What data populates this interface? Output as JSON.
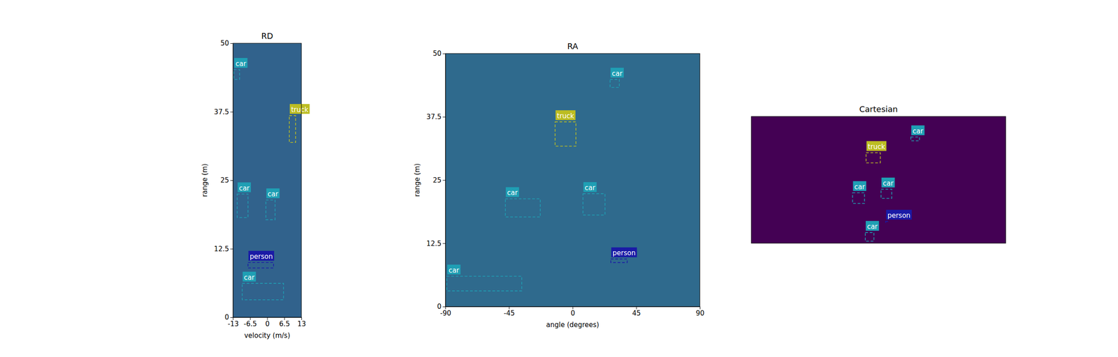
{
  "chart_data": [
    {
      "type": "detection",
      "title": "RD",
      "xlabel": "velocity (m/s)",
      "ylabel": "range (m)",
      "xlim": [
        -13,
        13
      ],
      "ylim": [
        0,
        50
      ],
      "xticks": [
        -13,
        -6.5,
        0,
        6.5,
        13
      ],
      "yticks": [
        0,
        12.5,
        25,
        37.5,
        50
      ],
      "boxes": [
        {
          "label": "car",
          "x": [
            -12.7,
            -10.5
          ],
          "y": [
            43.4,
            45.2
          ],
          "color": "#1f9fb4"
        },
        {
          "label": "truck",
          "x": [
            8.4,
            10.8
          ],
          "y": [
            31.9,
            36.8
          ],
          "color": "#bcbd22"
        },
        {
          "label": "car",
          "x": [
            -11.4,
            -7.3
          ],
          "y": [
            18.2,
            22.5
          ],
          "color": "#1f9fb4"
        },
        {
          "label": "car",
          "x": [
            -0.5,
            3.0
          ],
          "y": [
            17.8,
            21.4
          ],
          "color": "#1f9fb4"
        },
        {
          "label": "person",
          "x": [
            -7.3,
            2.4
          ],
          "y": [
            9.0,
            10.0
          ],
          "color": "#1a1aa6"
        },
        {
          "label": "car",
          "x": [
            -9.5,
            6.2
          ],
          "y": [
            3.2,
            6.2
          ],
          "color": "#1f9fb4"
        }
      ]
    },
    {
      "type": "detection",
      "title": "RA",
      "xlabel": "angle (degrees)",
      "ylabel": "range (m)",
      "xlim": [
        -90,
        90
      ],
      "ylim": [
        0,
        50
      ],
      "xticks": [
        -90,
        -45,
        0,
        45,
        90
      ],
      "yticks": [
        0,
        12.5,
        25,
        37.5,
        50
      ],
      "boxes": [
        {
          "label": "car",
          "x": [
            26.5,
            33.0
          ],
          "y": [
            43.3,
            44.9
          ],
          "color": "#1f9fb4"
        },
        {
          "label": "truck",
          "x": [
            -12.4,
            2.3
          ],
          "y": [
            31.7,
            36.5
          ],
          "color": "#bcbd22"
        },
        {
          "label": "car",
          "x": [
            -47.6,
            -22.9
          ],
          "y": [
            17.7,
            21.3
          ],
          "color": "#1f9fb4"
        },
        {
          "label": "car",
          "x": [
            7.3,
            22.9
          ],
          "y": [
            18.1,
            22.3
          ],
          "color": "#1f9fb4"
        },
        {
          "label": "person",
          "x": [
            27.0,
            38.6
          ],
          "y": [
            8.7,
            9.4
          ],
          "color": "#1a1aa6"
        },
        {
          "label": "car",
          "x": [
            -89.0,
            -36.0
          ],
          "y": [
            3.1,
            6.0
          ],
          "color": "#1f9fb4"
        }
      ]
    },
    {
      "type": "detection",
      "title": "Cartesian",
      "tick_labels": false,
      "xlim": [
        -50,
        50
      ],
      "ylim": [
        0,
        50
      ],
      "boxes": [
        {
          "label": "car",
          "x": [
            12.7,
            16.1
          ],
          "y": [
            40.4,
            41.9
          ],
          "color": "#1f9fb4"
        },
        {
          "label": "truck",
          "x": [
            -4.9,
            0.7
          ],
          "y": [
            31.7,
            35.7
          ],
          "color": "#bcbd22"
        },
        {
          "label": "car",
          "x": [
            -10.2,
            -5.5
          ],
          "y": [
            15.7,
            19.9
          ],
          "color": "#1f9fb4"
        },
        {
          "label": "car",
          "x": [
            1.0,
            5.2
          ],
          "y": [
            17.7,
            21.3
          ],
          "color": "#1f9fb4"
        },
        {
          "label": "person",
          "x": [
            2.8,
            3.6
          ],
          "y": [
            8.2,
            8.6
          ],
          "color": "#1a1aa6"
        },
        {
          "label": "car",
          "x": [
            -5.2,
            -1.8
          ],
          "y": [
            0.8,
            4.2
          ],
          "color": "#1f9fb4"
        }
      ]
    }
  ]
}
